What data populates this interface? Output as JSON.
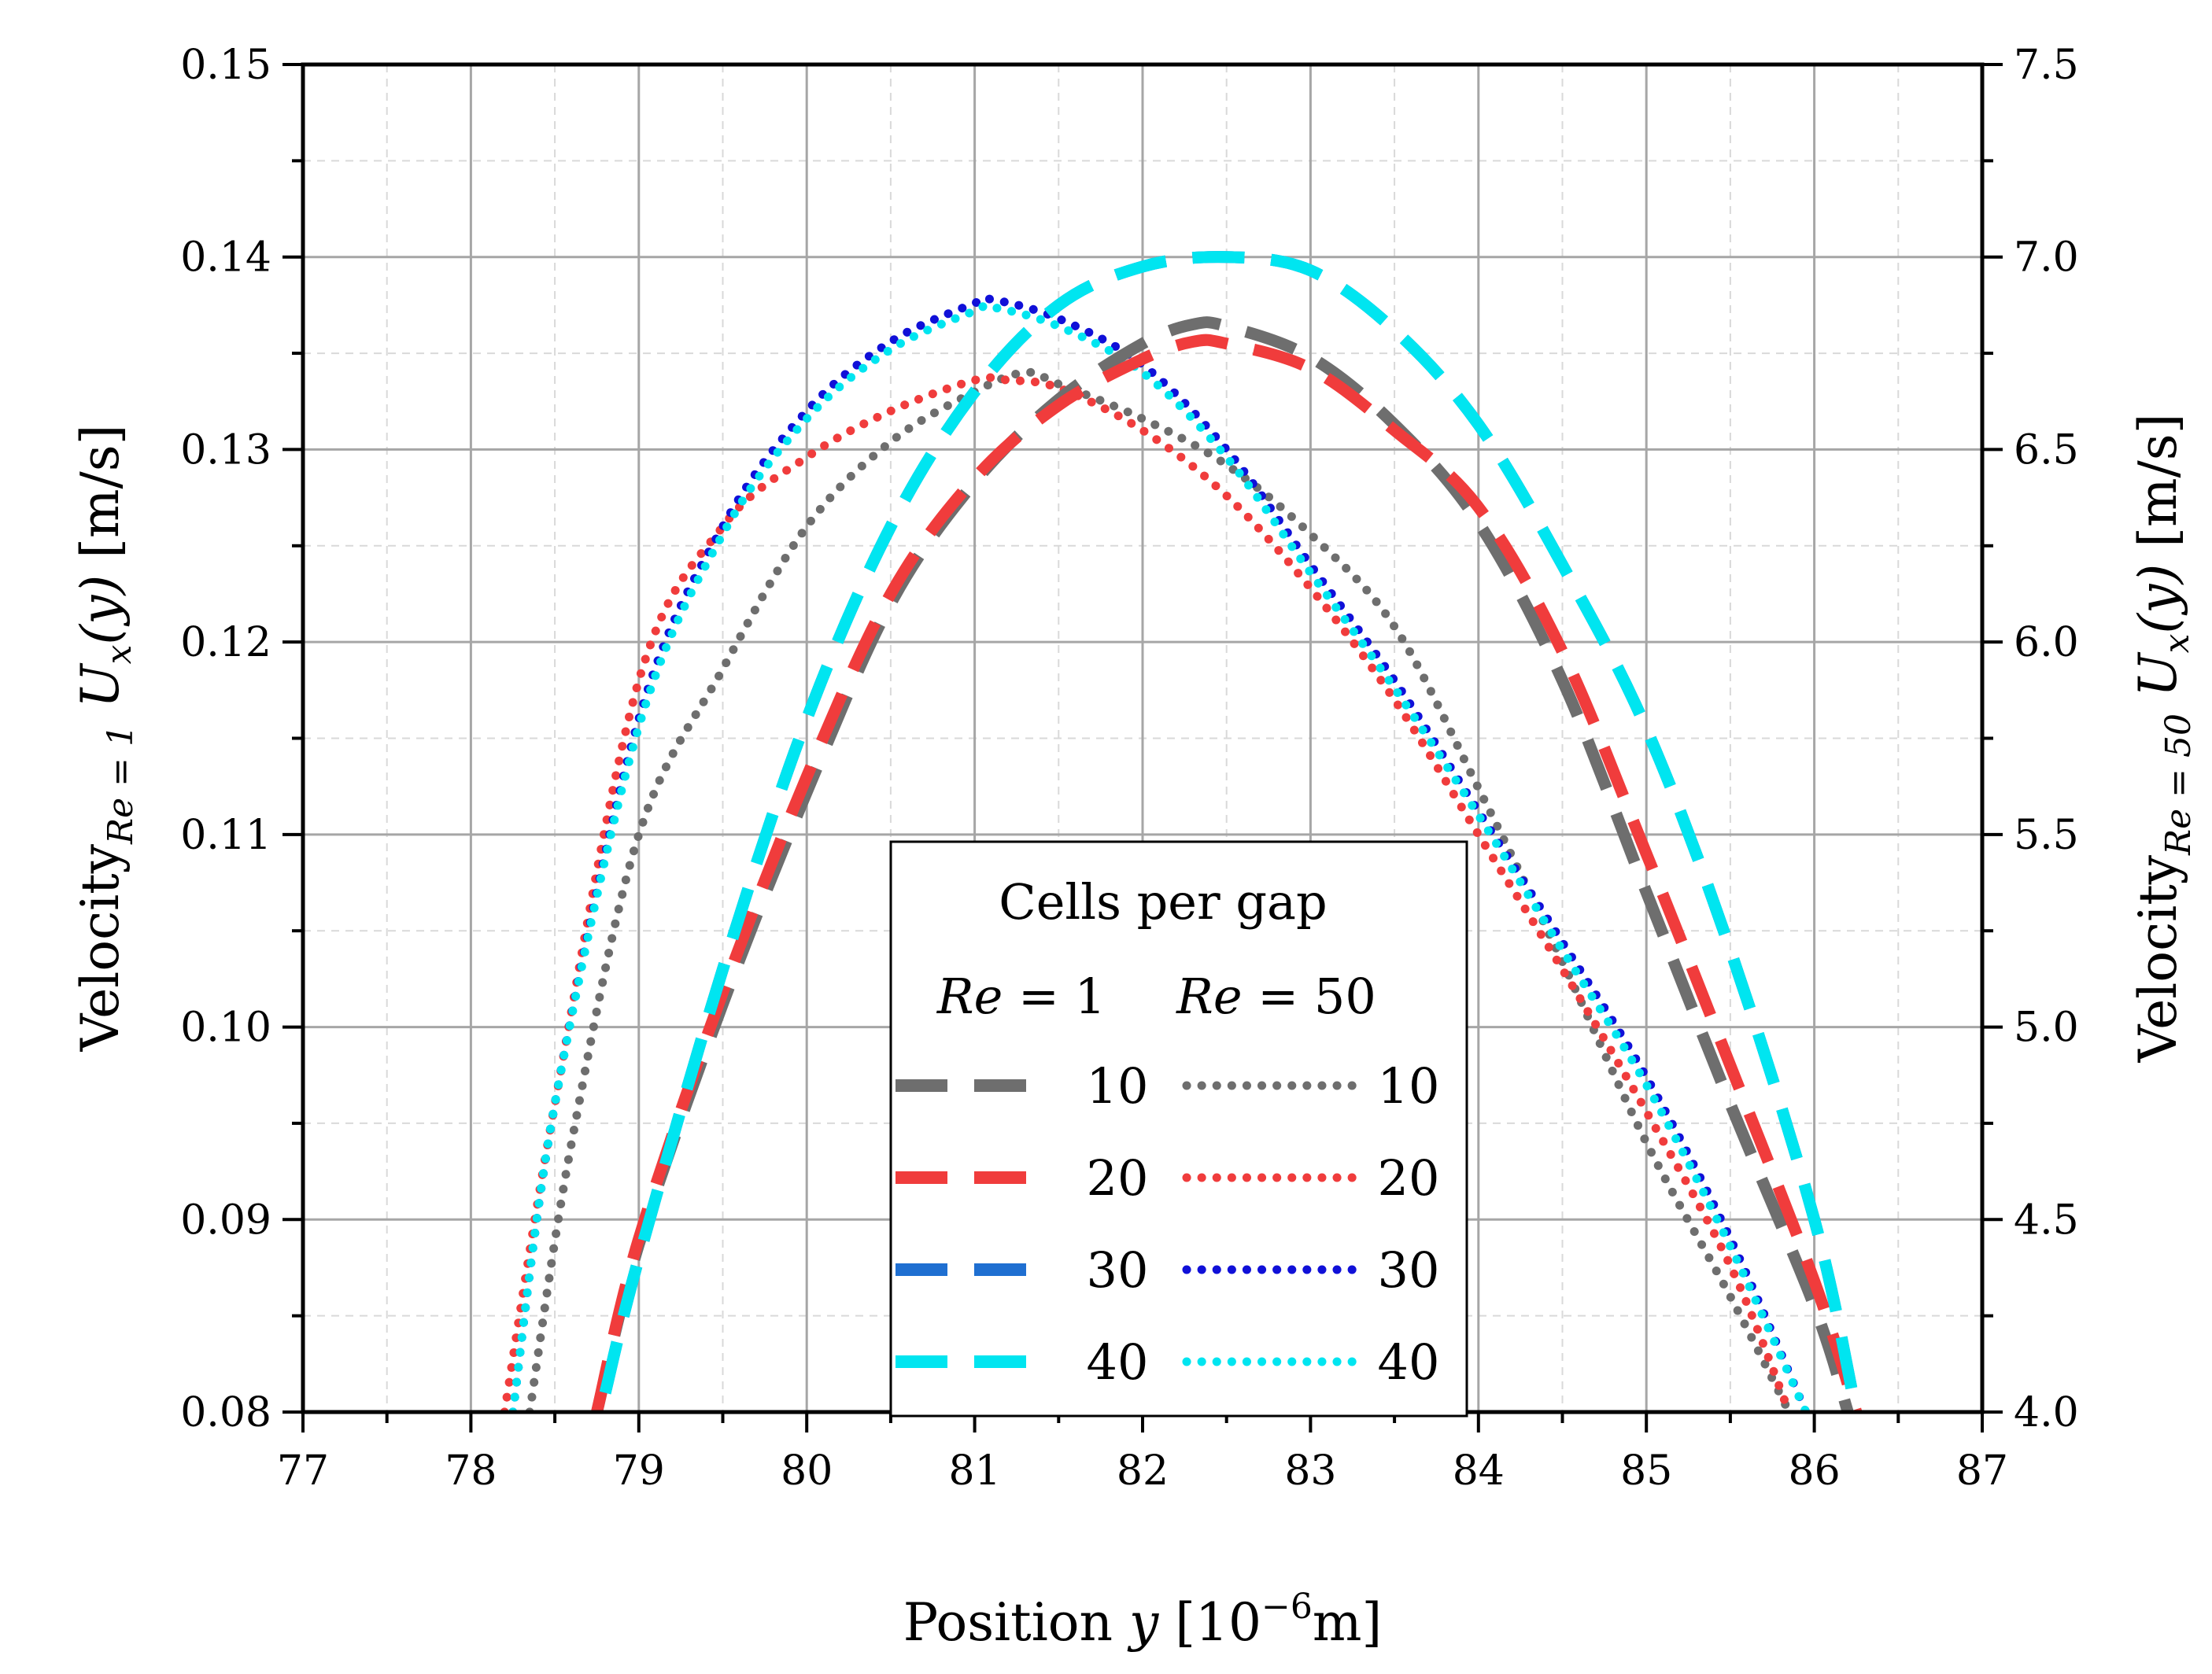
{
  "chart_data": {
    "type": "line",
    "title": "",
    "xlabel": {
      "text": "Position ",
      "var": "y",
      "unit_open": " [10",
      "exp": "−6",
      "unit_close": "m]"
    },
    "ylabel_left": {
      "prefix": "Velocity",
      "sub": "Re = 1",
      "var": "U",
      "var_sub": "x",
      "arg": "(y)",
      "unit": " [m/s]"
    },
    "ylabel_right": {
      "prefix": "Velocity",
      "sub": "Re = 50",
      "var": "U",
      "var_sub": "x",
      "arg": "(y)",
      "unit": " [m/s]"
    },
    "xlim": [
      77,
      87
    ],
    "ylim_left": [
      0.08,
      0.15
    ],
    "ylim_right": [
      4.0,
      7.5
    ],
    "x_ticks": [
      "77",
      "78",
      "79",
      "80",
      "81",
      "82",
      "83",
      "84",
      "85",
      "86",
      "87"
    ],
    "y_ticks_left": [
      "0.08",
      "0.09",
      "0.10",
      "0.11",
      "0.12",
      "0.13",
      "0.14",
      "0.15"
    ],
    "y_ticks_right": [
      "4.0",
      "4.5",
      "5.0",
      "5.5",
      "6.0",
      "6.5",
      "7.0",
      "7.5"
    ],
    "grid": true,
    "legend": {
      "title": "Cells per gap",
      "col_headers": [
        {
          "var": "Re",
          "rest": " = 1"
        },
        {
          "var": "Re",
          "rest": " = 50"
        }
      ],
      "rows": [
        "10",
        "20",
        "30",
        "40"
      ],
      "placement": "lower-center"
    },
    "colors": {
      "10": "#6e6e6e",
      "20": "#f03c3c",
      "30": "#1f6fd1",
      "30_dotted": "#1010d8",
      "40": "#00e5f0"
    },
    "series": [
      {
        "name": "Re=1, 10 cells",
        "axis": "left",
        "style": "dashed",
        "color": "#6e6e6e",
        "x": [
          78.75,
          79.0,
          79.5,
          80.0,
          80.5,
          81.0,
          81.5,
          82.0,
          82.3,
          82.5,
          83.0,
          83.5,
          84.0,
          84.5,
          85.0,
          85.5,
          86.0,
          86.2
        ],
        "y": [
          0.08,
          0.0887,
          0.1012,
          0.1122,
          0.122,
          0.1283,
          0.1326,
          0.1355,
          0.1365,
          0.1364,
          0.1348,
          0.1313,
          0.1262,
          0.118,
          0.107,
          0.096,
          0.0855,
          0.08
        ]
      },
      {
        "name": "Re=1, 20 cells",
        "axis": "left",
        "style": "dashed",
        "color": "#f03c3c",
        "x": [
          78.75,
          79.0,
          79.5,
          80.0,
          80.5,
          81.0,
          81.5,
          82.0,
          82.3,
          82.5,
          83.0,
          83.5,
          84.0,
          84.5,
          85.0,
          85.5,
          86.0,
          86.25
        ],
        "y": [
          0.08,
          0.089,
          0.1018,
          0.113,
          0.1225,
          0.1285,
          0.1323,
          0.1347,
          0.1356,
          0.1355,
          0.1342,
          0.131,
          0.127,
          0.1195,
          0.109,
          0.098,
          0.0868,
          0.08
        ]
      },
      {
        "name": "Re=1, 30 cells",
        "axis": "left",
        "style": "dashed",
        "color": "#1f6fd1",
        "x": [
          78.8,
          79.0,
          79.5,
          80.0,
          80.5,
          81.0,
          81.5,
          82.0,
          82.5,
          83.0,
          83.5,
          84.0,
          84.5,
          85.0,
          85.5,
          86.0,
          86.25
        ],
        "y": [
          0.081,
          0.088,
          0.103,
          0.116,
          0.126,
          0.133,
          0.1375,
          0.1395,
          0.14,
          0.1393,
          0.1362,
          0.1313,
          0.124,
          0.1155,
          0.104,
          0.09,
          0.08
        ]
      },
      {
        "name": "Re=1, 40 cells",
        "axis": "left",
        "style": "dashed",
        "color": "#00e5f0",
        "x": [
          78.8,
          79.0,
          79.5,
          80.0,
          80.5,
          81.0,
          81.5,
          82.0,
          82.5,
          83.0,
          83.5,
          84.0,
          84.5,
          85.0,
          85.5,
          86.0,
          86.25
        ],
        "y": [
          0.081,
          0.088,
          0.103,
          0.116,
          0.126,
          0.133,
          0.1375,
          0.1395,
          0.14,
          0.1393,
          0.1362,
          0.1313,
          0.124,
          0.1155,
          0.104,
          0.09,
          0.08
        ]
      },
      {
        "name": "Re=50, 10 cells",
        "axis": "right",
        "style": "dotted",
        "color": "#6e6e6e",
        "x": [
          78.35,
          78.6,
          79.0,
          79.5,
          80.0,
          80.5,
          81.0,
          81.3,
          81.5,
          82.0,
          82.5,
          83.0,
          83.5,
          84.0,
          84.5,
          85.0,
          85.5,
          85.85
        ],
        "y": [
          4.0,
          4.7,
          5.5,
          5.93,
          6.3,
          6.52,
          6.65,
          6.7,
          6.67,
          6.58,
          6.46,
          6.28,
          6.04,
          5.62,
          5.17,
          4.7,
          4.3,
          4.0
        ]
      },
      {
        "name": "Re=50, 20 cells",
        "axis": "right",
        "style": "dotted",
        "color": "#f03c3c",
        "x": [
          78.2,
          78.5,
          79.0,
          79.5,
          80.0,
          80.5,
          81.0,
          81.2,
          81.5,
          82.0,
          82.5,
          83.0,
          83.5,
          84.0,
          84.5,
          85.0,
          85.5,
          85.85
        ],
        "y": [
          4.0,
          4.8,
          5.9,
          6.3,
          6.48,
          6.6,
          6.68,
          6.68,
          6.66,
          6.55,
          6.38,
          6.14,
          5.85,
          5.5,
          5.15,
          4.78,
          4.38,
          4.0
        ]
      },
      {
        "name": "Re=50, 30 cells",
        "axis": "right",
        "style": "dotted",
        "color": "#1010d8",
        "x": [
          78.25,
          78.5,
          79.0,
          79.5,
          80.0,
          80.5,
          81.0,
          81.1,
          81.5,
          82.0,
          82.5,
          83.0,
          83.5,
          84.0,
          84.5,
          85.0,
          85.5,
          85.95
        ],
        "y": [
          4.0,
          4.8,
          5.8,
          6.3,
          6.6,
          6.78,
          6.88,
          6.89,
          6.84,
          6.72,
          6.5,
          6.2,
          5.9,
          5.56,
          5.22,
          4.87,
          4.45,
          4.0
        ]
      },
      {
        "name": "Re=50, 40 cells",
        "axis": "right",
        "style": "dotted",
        "color": "#00e5f0",
        "x": [
          78.25,
          78.5,
          79.0,
          79.5,
          80.0,
          80.5,
          81.0,
          81.1,
          81.5,
          82.0,
          82.5,
          83.0,
          83.5,
          84.0,
          84.5,
          85.0,
          85.5,
          85.95
        ],
        "y": [
          4.0,
          4.8,
          5.78,
          6.28,
          6.58,
          6.76,
          6.86,
          6.87,
          6.82,
          6.7,
          6.48,
          6.18,
          5.88,
          5.55,
          5.2,
          4.85,
          4.43,
          4.0
        ]
      }
    ]
  }
}
